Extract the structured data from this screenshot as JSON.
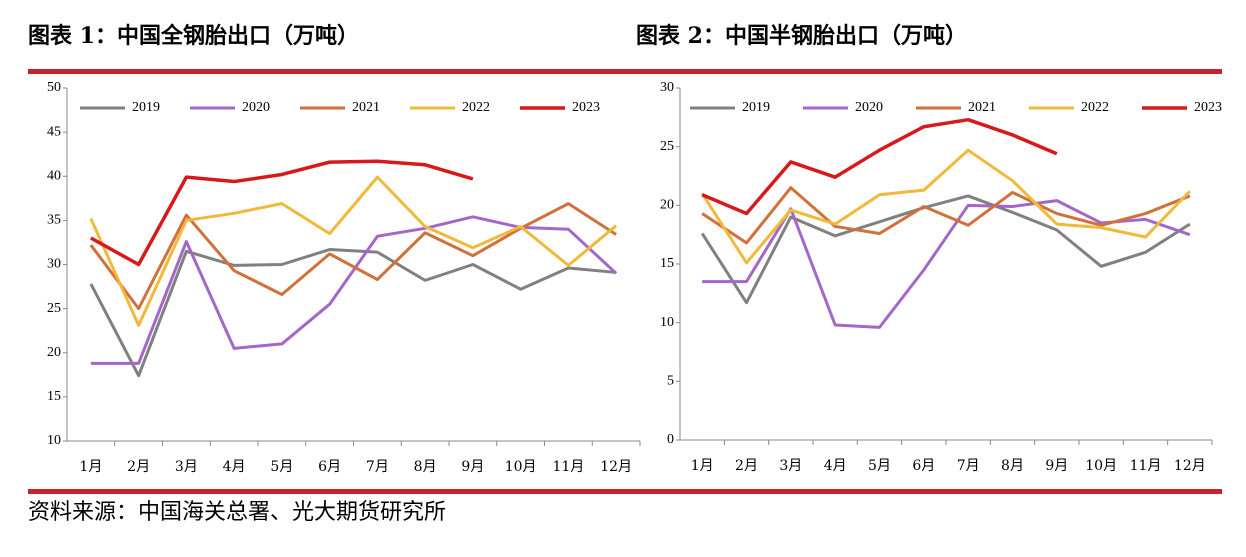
{
  "chart_data": [
    {
      "type": "line",
      "title": "图表 1：中国全钢胎出口（万吨）",
      "categories": [
        "1月",
        "2月",
        "3月",
        "4月",
        "5月",
        "6月",
        "7月",
        "8月",
        "9月",
        "10月",
        "11月",
        "12月"
      ],
      "ylim": [
        10,
        50
      ],
      "yticks": [
        10,
        15,
        20,
        25,
        30,
        35,
        40,
        45,
        50
      ],
      "series": [
        {
          "name": "2019",
          "color": "#808080",
          "values": [
            27.8,
            17.4,
            31.5,
            29.9,
            30.0,
            31.7,
            31.4,
            28.2,
            30.0,
            27.2,
            29.6,
            29.1
          ]
        },
        {
          "name": "2020",
          "color": "#a566c9",
          "values": [
            18.8,
            18.8,
            32.6,
            20.5,
            21.0,
            25.5,
            33.2,
            34.1,
            35.4,
            34.2,
            34.0,
            29.0
          ]
        },
        {
          "name": "2021",
          "color": "#d0703a",
          "values": [
            32.2,
            25.0,
            35.6,
            29.3,
            26.6,
            31.2,
            28.3,
            33.6,
            31.0,
            34.1,
            36.9,
            33.4
          ]
        },
        {
          "name": "2022",
          "color": "#f0b93a",
          "values": [
            35.2,
            23.1,
            35.0,
            35.8,
            36.9,
            33.5,
            39.9,
            34.3,
            31.9,
            34.3,
            29.9,
            34.4
          ]
        },
        {
          "name": "2023",
          "color": "#d7191c",
          "values": [
            33.0,
            30.0,
            39.9,
            39.4,
            40.2,
            41.6,
            41.7,
            41.3,
            39.7,
            null,
            null,
            null
          ]
        }
      ]
    },
    {
      "type": "line",
      "title": "图表 2：中国半钢胎出口（万吨）",
      "categories": [
        "1月",
        "2月",
        "3月",
        "4月",
        "5月",
        "6月",
        "7月",
        "8月",
        "9月",
        "10月",
        "11月",
        "12月"
      ],
      "ylim": [
        0,
        30
      ],
      "yticks": [
        0,
        5,
        10,
        15,
        20,
        25,
        30
      ],
      "series": [
        {
          "name": "2019",
          "color": "#808080",
          "values": [
            17.6,
            11.7,
            19.0,
            17.4,
            18.6,
            19.8,
            20.8,
            19.4,
            17.9,
            14.8,
            16.0,
            18.4
          ]
        },
        {
          "name": "2020",
          "color": "#a566c9",
          "values": [
            13.5,
            13.5,
            19.7,
            9.8,
            9.6,
            14.5,
            20.0,
            19.9,
            20.4,
            18.5,
            18.8,
            17.5
          ]
        },
        {
          "name": "2021",
          "color": "#d0703a",
          "values": [
            19.3,
            16.8,
            21.5,
            18.2,
            17.6,
            19.9,
            18.3,
            21.1,
            19.3,
            18.3,
            19.3,
            20.8
          ]
        },
        {
          "name": "2022",
          "color": "#f0b93a",
          "values": [
            21.0,
            15.1,
            19.6,
            18.4,
            20.9,
            21.3,
            24.7,
            22.1,
            18.4,
            18.1,
            17.3,
            21.2
          ]
        },
        {
          "name": "2023",
          "color": "#d7191c",
          "values": [
            20.9,
            19.3,
            23.7,
            22.4,
            24.7,
            26.7,
            27.3,
            26.0,
            24.4,
            null,
            null,
            null
          ]
        }
      ]
    }
  ],
  "source": "资料来源：中国海关总署、光大期货研究所"
}
